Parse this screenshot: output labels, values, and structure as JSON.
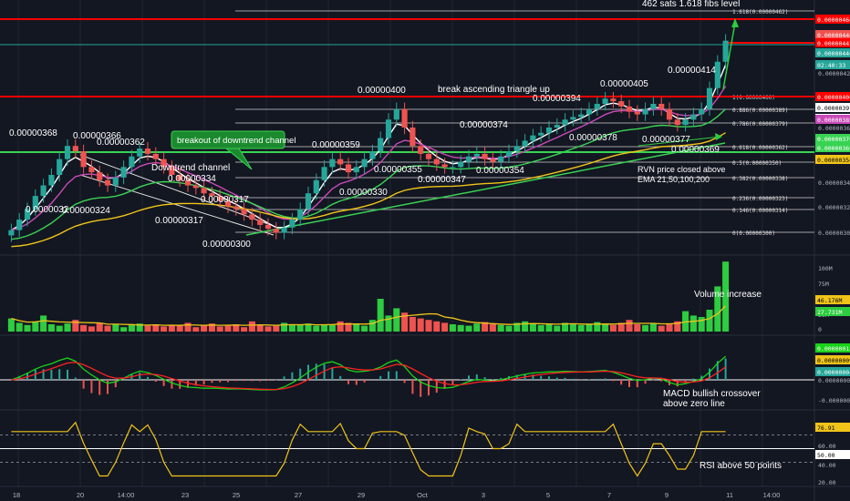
{
  "colors": {
    "background": "#131722",
    "grid": "#1f2430",
    "up": "#26a69a",
    "up_bright": "#2ecc40",
    "down": "#ef5350",
    "red_level": "#ff0000",
    "fib_line": "#d0d0d0",
    "ema21": "#ffffff",
    "ema50": "#c84ab8",
    "ema100": "#39d353",
    "ema200": "#f0c419",
    "volume_ma": "#f0c419",
    "macd": "#19d219",
    "signal": "#ff2020",
    "rsi": "#f0c419",
    "green_arrow": "#2ecc40"
  },
  "price_panel": {
    "fib_title": "462 sats 1.618 fibs level",
    "breakout_label": "breakout of downtrend channel",
    "downtrend_label": "Downtrend channel",
    "triangle_label": "break ascending triangle up",
    "ema_note_1": "RVN price closed above",
    "ema_note_2": "EMA 21,50,100,200",
    "point_labels": [
      "0.00000368",
      "0.00000366",
      "0.00000362",
      "0.00000334",
      "0.0000032",
      "0.00000324",
      "0.00000317",
      "0.00000317",
      "0.00000300",
      "0.00000359",
      "0.00000330",
      "0.00000400",
      "0.00000355",
      "0.00000347",
      "0.00000374",
      "0.00000354",
      "0.00000394",
      "0.00000405",
      "0.00000378",
      "0.00000414",
      "0.00000377",
      "0.00000369"
    ],
    "fib_levels": [
      {
        "label": "1.618(0.00000462)"
      },
      {
        "label": "1(0.00000400)"
      },
      {
        "label": "0.886(0.00000389)"
      },
      {
        "label": "0.786(0.00000379)"
      },
      {
        "label": "0.618(0.00000362)"
      },
      {
        "label": "0.5(0.00000350)"
      },
      {
        "label": "0.382(0.00000338)"
      },
      {
        "label": "0.236(0.00000323)"
      },
      {
        "label": "0.146(0.00000314)"
      },
      {
        "label": "0(0.00000300)"
      }
    ],
    "axis_ticks": [
      "0.00000420",
      "0.00000360",
      "0.00000340",
      "0.00000320",
      "0.00000300"
    ],
    "price_tags": [
      {
        "text": "0.00000460",
        "color": "#ff0000"
      },
      {
        "text": "0.00000446",
        "color": "#ef5350"
      },
      {
        "text": "0.00000442",
        "color": "#ff0000"
      },
      {
        "text": "0.00000440",
        "color": "#26a69a"
      },
      {
        "text": "02:40:33",
        "color": "#26a69a"
      },
      {
        "text": "0.00000400",
        "color": "#ff0000"
      },
      {
        "text": "0.00000397",
        "color": "#ffffff"
      },
      {
        "text": "0.00000389",
        "color": "#ffffff"
      },
      {
        "text": "0.00000385",
        "color": "#c84ab8"
      },
      {
        "text": "0.00000370",
        "color": "#39d353"
      },
      {
        "text": "0.00000369",
        "color": "#39d353"
      },
      {
        "text": "0.00000356",
        "color": "#f0c419"
      }
    ]
  },
  "volume_panel": {
    "label": "Volume increase",
    "axis_ticks": [
      "100M",
      "75M",
      "50M",
      "25M",
      "0"
    ],
    "tags": [
      {
        "text": "46.176M",
        "color": "#f0c419"
      },
      {
        "text": "27.731M",
        "color": "#2ecc40"
      }
    ]
  },
  "macd_panel": {
    "label_1": "MACD bullish crossover",
    "label_2": "above zero line",
    "axis_ticks": [
      "0.00000000",
      "-0.00000010"
    ],
    "tags": [
      {
        "text": "0.00000013",
        "color": "#19d219"
      },
      {
        "text": "0.00000009",
        "color": "#f0c419"
      },
      {
        "text": "0.00000004",
        "color": "#26a69a"
      }
    ]
  },
  "rsi_panel": {
    "label": "RSI above 50 points",
    "axis_ticks": [
      "60.00",
      "40.00",
      "20.00"
    ],
    "tags": [
      {
        "text": "76.91",
        "color": "#f0c419"
      },
      {
        "text": "50.00",
        "color": "#ffffff"
      }
    ]
  },
  "time_axis": [
    "18",
    "20",
    "14:00",
    "23",
    "25",
    "27",
    "29",
    "Oct",
    "3",
    "5",
    "7",
    "9",
    "11",
    "14:00"
  ],
  "chart_data": {
    "type": "candlestick",
    "symbol_unit": "BTC",
    "series": [
      {
        "name": "price",
        "values": [
          3.02,
          3.1,
          3.18,
          3.28,
          3.36,
          3.44,
          3.56,
          3.66,
          3.62,
          3.5,
          3.46,
          3.4,
          3.36,
          3.42,
          3.5,
          3.58,
          3.64,
          3.6,
          3.56,
          3.5,
          3.44,
          3.4,
          3.36,
          3.34,
          3.3,
          3.28,
          3.24,
          3.2,
          3.18,
          3.14,
          3.1,
          3.06,
          3.03,
          3.0,
          3.04,
          3.1,
          3.18,
          3.3,
          3.4,
          3.5,
          3.56,
          3.52,
          3.46,
          3.5,
          3.56,
          3.62,
          3.72,
          3.86,
          3.94,
          3.8,
          3.66,
          3.6,
          3.56,
          3.52,
          3.5,
          3.5,
          3.54,
          3.58,
          3.6,
          3.56,
          3.54,
          3.58,
          3.62,
          3.66,
          3.7,
          3.74,
          3.76,
          3.8,
          3.82,
          3.86,
          3.88,
          3.9,
          3.94,
          3.98,
          4.02,
          4.0,
          3.96,
          3.92,
          3.9,
          3.94,
          3.98,
          3.94,
          3.86,
          3.82,
          3.86,
          3.9,
          3.94,
          4.1,
          4.3,
          4.46
        ]
      }
    ],
    "volume": {
      "values": [
        18,
        12,
        9,
        14,
        22,
        10,
        8,
        11,
        16,
        9,
        7,
        12,
        8,
        10,
        6,
        9,
        11,
        8,
        10,
        7,
        9,
        8,
        12,
        6,
        9,
        11,
        7,
        8,
        10,
        6,
        14,
        9,
        7,
        8,
        12,
        10,
        9,
        11,
        8,
        10,
        9,
        14,
        12,
        10,
        8,
        16,
        45,
        22,
        32,
        26,
        20,
        18,
        16,
        14,
        12,
        10,
        9,
        8,
        11,
        13,
        10,
        9,
        8,
        12,
        14,
        11,
        9,
        10,
        8,
        12,
        10,
        9,
        11,
        13,
        10,
        9,
        12,
        16,
        10,
        9,
        11,
        8,
        10,
        14,
        28,
        22,
        20,
        30,
        62,
        96
      ]
    },
    "ylim": [
      2.9,
      4.7
    ],
    "ylabel_unit": "0.00000100",
    "rsi_levels": [
      70,
      50,
      30
    ]
  }
}
